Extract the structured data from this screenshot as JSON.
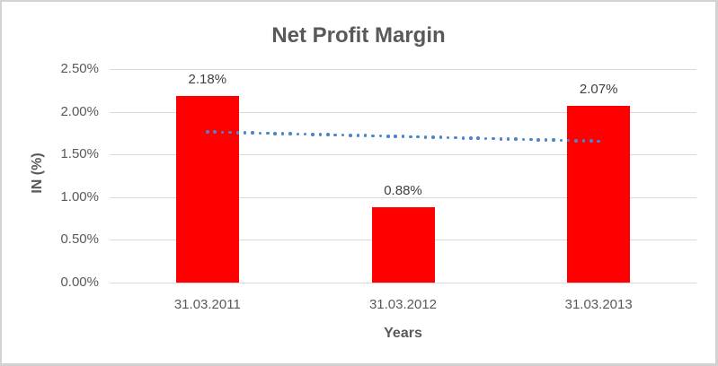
{
  "chart_data": {
    "type": "bar",
    "title": "Net Profit Margin",
    "xlabel": "Years",
    "ylabel": "IN (%)",
    "categories": [
      "31.03.2011",
      "31.03.2012",
      "31.03.2013"
    ],
    "values": [
      2.18,
      0.88,
      2.07
    ],
    "data_labels": [
      "2.18%",
      "0.88%",
      "2.07%"
    ],
    "ylim": [
      0,
      2.5
    ],
    "y_ticks": [
      {
        "value": 0.0,
        "label": "0.00%"
      },
      {
        "value": 0.5,
        "label": "0.50%"
      },
      {
        "value": 1.0,
        "label": "1.00%"
      },
      {
        "value": 1.5,
        "label": "1.50%"
      },
      {
        "value": 2.0,
        "label": "2.00%"
      },
      {
        "value": 2.5,
        "label": "2.50%"
      }
    ],
    "grid": true,
    "legend": "none",
    "trendline": {
      "type": "linear",
      "style": "dotted",
      "start_value": 1.765,
      "end_value": 1.655
    },
    "colors": {
      "bar": "#ff0000",
      "trend": "#4a86c8",
      "grid": "#d9d9d9",
      "axis_text": "#595959",
      "data_label_text": "#404040",
      "title_text": "#595959",
      "frame_border": "#d2d2d2"
    }
  }
}
